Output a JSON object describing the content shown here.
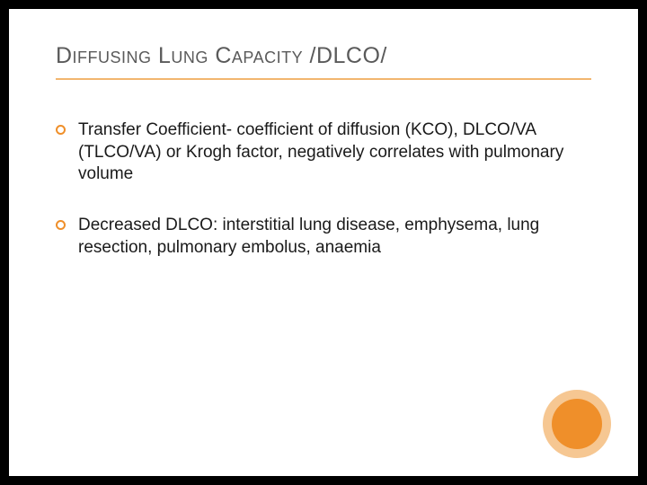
{
  "slide": {
    "title": "Diffusing Lung Capacity /DLCO/",
    "title_color": "#5a5a5a",
    "title_fontsize": 25,
    "underline_color": "#f2b66f",
    "bullets": [
      {
        "text": "Transfer Coefficient- coefficient of diffusion (KCO), DLCO/VA (TLCO/VA) or Krogh factor, negatively correlates with pulmonary volume"
      },
      {
        "text": "Decreased DLCO: interstitial lung disease, emphysema, lung resection, pulmonary embolus, anaemia"
      }
    ],
    "bullet_fontsize": 19,
    "bullet_color": "#1a1a1a",
    "bullet_marker_border": "#ef8f2a",
    "background_color": "#ffffff",
    "outer_background": "#000000",
    "decor": {
      "outer_circle_color": "#f6c792",
      "inner_circle_color": "#ef8f2a"
    }
  }
}
